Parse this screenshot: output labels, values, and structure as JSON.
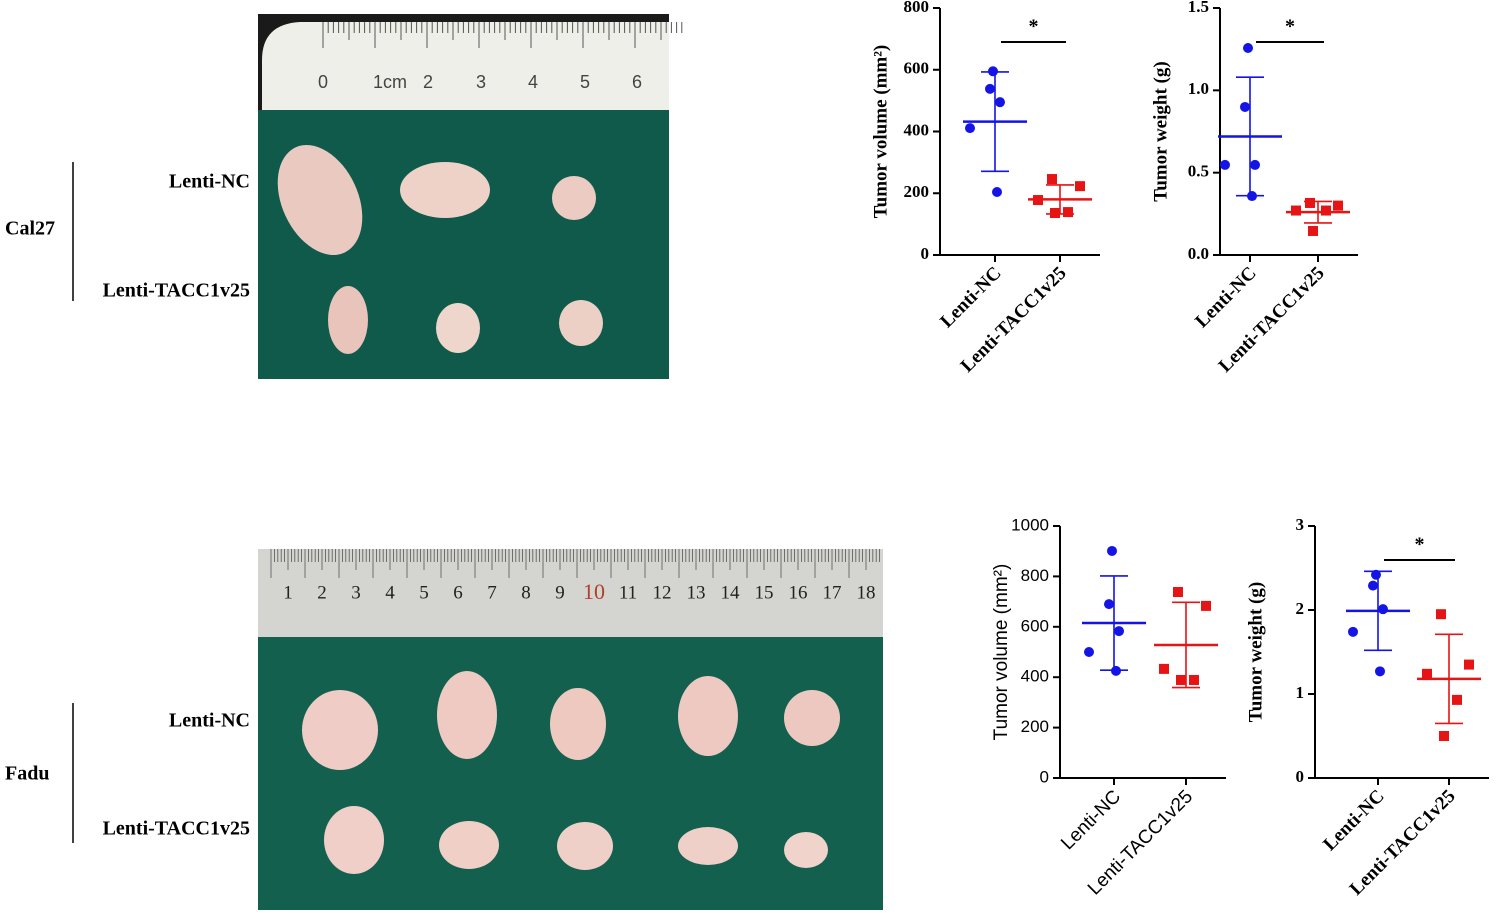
{
  "photos": [
    {
      "group": "Cal27",
      "rows": [
        "Lenti-NC",
        "Lenti-TACC1v25"
      ],
      "ruler": [
        "0",
        "1cm",
        "2",
        "3",
        "4",
        "5",
        "6"
      ]
    },
    {
      "group": "Fadu",
      "rows": [
        "Lenti-NC",
        "Lenti-TACC1v25"
      ],
      "ruler": [
        "1",
        "2",
        "3",
        "4",
        "5",
        "6",
        "7",
        "8",
        "9",
        "10",
        "11",
        "12",
        "13",
        "14",
        "15",
        "16",
        "17",
        "18"
      ]
    }
  ],
  "chart_data": [
    {
      "type": "scatter",
      "font": "serif",
      "ylabel": "Tumor volume (mm²)",
      "categories": [
        "Lenti-NC",
        "Lenti-TACC1v25"
      ],
      "ylim": [
        0,
        800
      ],
      "yticks": [
        0,
        200,
        400,
        600,
        800
      ],
      "significance": "*",
      "series": [
        {
          "color": "#1414e6",
          "marker": "circle",
          "values": [
            595,
            538,
            495,
            411,
            204
          ],
          "mean": 432,
          "sd": 161
        },
        {
          "color": "#e61414",
          "marker": "square",
          "values": [
            246,
            223,
            178,
            139,
            136
          ],
          "mean": 180,
          "sd": 47
        }
      ]
    },
    {
      "type": "scatter",
      "font": "serif",
      "ylabel": "Tumor weight (g)",
      "categories": [
        "Lenti-NC",
        "Lenti-TACC1v25"
      ],
      "ylim": [
        0,
        1.5
      ],
      "yticks": [
        {
          "value": 0,
          "label": "0.0"
        },
        0.5,
        {
          "value": 1,
          "label": "1.0"
        },
        1.5
      ],
      "significance": "*",
      "series": [
        {
          "color": "#1414e6",
          "marker": "circle",
          "values": [
            1.257,
            0.899,
            0.547,
            0.547,
            0.358
          ],
          "mean": 0.72,
          "sd": 0.36
        },
        {
          "color": "#e61414",
          "marker": "square",
          "values": [
            0.316,
            0.3,
            0.27,
            0.27,
            0.146
          ],
          "mean": 0.26,
          "sd": 0.065
        }
      ]
    },
    {
      "type": "scatter",
      "font": "sans",
      "ylabel": "Tumor volume (mm²)",
      "categories": [
        "Lenti-NC",
        "Lenti-TACC1v25"
      ],
      "ylim": [
        0,
        1000
      ],
      "yticks": [
        0,
        200,
        400,
        600,
        800,
        1000
      ],
      "series": [
        {
          "color": "#1414e6",
          "marker": "circle",
          "values": [
            901,
            690,
            583,
            500,
            425
          ],
          "mean": 615,
          "sd": 187
        },
        {
          "color": "#e61414",
          "marker": "square",
          "values": [
            738,
            683,
            433,
            389,
            389
          ],
          "mean": 528,
          "sd": 169
        }
      ]
    },
    {
      "type": "scatter",
      "font": "serif",
      "ylabel": "Tumor weight (g)",
      "categories": [
        "Lenti-NC",
        "Lenti-TACC1v25"
      ],
      "ylim": [
        0,
        3
      ],
      "yticks": [
        0,
        1,
        2,
        3
      ],
      "significance": "*",
      "series": [
        {
          "color": "#1414e6",
          "marker": "circle",
          "values": [
            2.42,
            2.29,
            2.01,
            1.74,
            1.27
          ],
          "mean": 1.99,
          "sd": 0.47
        },
        {
          "color": "#e61414",
          "marker": "square",
          "values": [
            1.95,
            1.35,
            1.24,
            0.93,
            0.5
          ],
          "mean": 1.18,
          "sd": 0.53
        }
      ]
    }
  ]
}
